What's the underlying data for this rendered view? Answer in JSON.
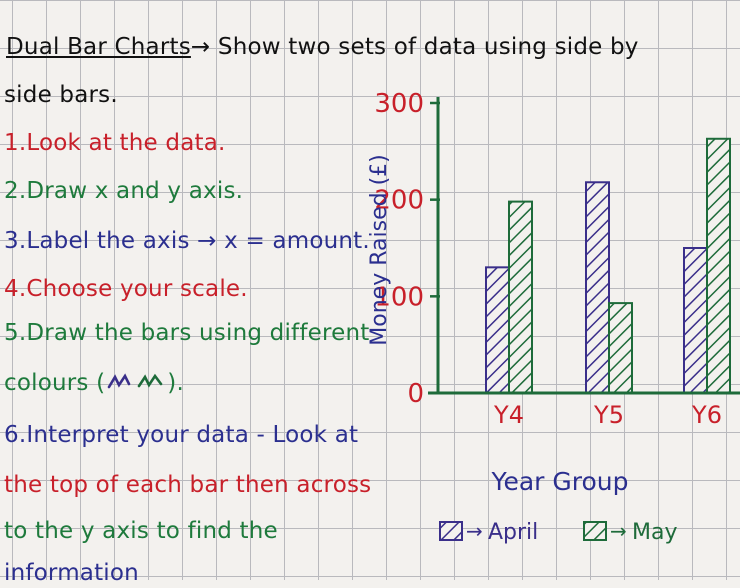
{
  "poster": {
    "title": "Dual Bar Charts",
    "title_rest": "→ Show two sets of data using side by",
    "title_cont": "side bars.",
    "steps": [
      {
        "text": "1.Look at the data.",
        "color": "#c8202a"
      },
      {
        "text": "2.Draw x and y axis.",
        "color": "#1e7a3c"
      },
      {
        "text": "3.Label the axis → x = amount.",
        "color": "#2b2f8f"
      },
      {
        "text": "4.Choose your scale.",
        "color": "#c8202a"
      },
      {
        "text": "5.Draw the bars using different",
        "color": "#1e7a3c"
      },
      {
        "text": "colours (",
        "color": "#1e7a3c"
      },
      {
        "text": ").",
        "color": "#1e7a3c"
      },
      {
        "text": "6.Interpret your data - Look at",
        "color": "#2b2f8f"
      },
      {
        "text": "the top of each bar then across",
        "color": "#c8202a"
      },
      {
        "text": "to the y axis to find the",
        "color": "#1e7a3c"
      },
      {
        "text": "information",
        "color": "#2b2f8f"
      }
    ]
  },
  "chart_data": {
    "type": "bar",
    "categories": [
      "Y4",
      "Y5",
      "Y6"
    ],
    "series": [
      {
        "name": "April",
        "values": [
          130,
          218,
          150
        ],
        "color": "#3a2f8a"
      },
      {
        "name": "May",
        "values": [
          198,
          93,
          263
        ],
        "color": "#1e6b3a"
      }
    ],
    "xlabel": "Year Group",
    "ylabel": "Money Raised (£)",
    "yticks": [
      0,
      100,
      200,
      300
    ],
    "ylim": [
      0,
      300
    ],
    "legend": "bottom",
    "legend_arrow": "→",
    "colors": {
      "axis": "#1e6b3a",
      "ytick": "#c8202a",
      "xtick": "#c8202a",
      "xlabel": "#2b2f8f",
      "ylabel": "#2b2f8f"
    }
  }
}
